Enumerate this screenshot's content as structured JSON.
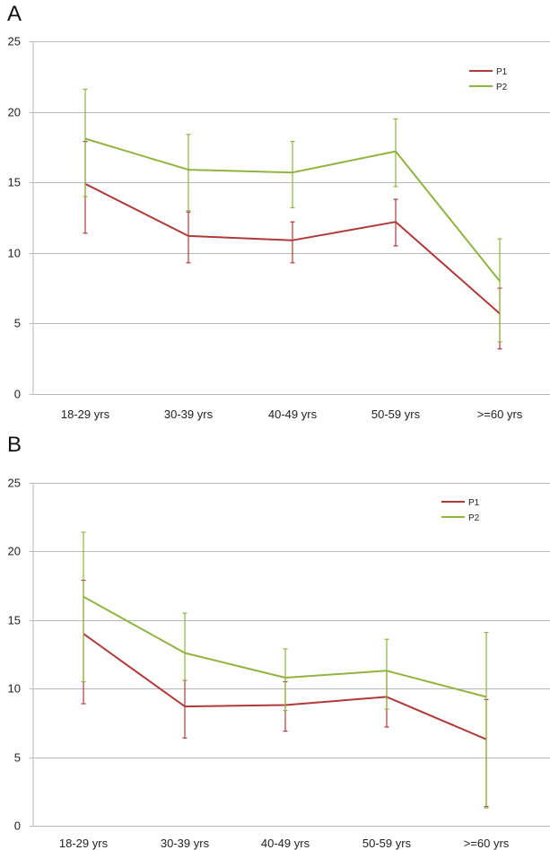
{
  "colors": {
    "P1": "#b03a3a",
    "P2": "#8fb440",
    "grid": "#b8b8b8"
  },
  "chart_data": [
    {
      "panel_label": "A",
      "type": "line",
      "title": "",
      "xlabel": "",
      "ylabel": "",
      "ylim": [
        0,
        25
      ],
      "yticks": [
        0,
        5,
        10,
        15,
        20,
        25
      ],
      "grid": true,
      "legend_position": "top-right",
      "categories": [
        "18-29 yrs",
        "30-39 yrs",
        "40-49 yrs",
        "50-59 yrs",
        ">=60 yrs"
      ],
      "series": [
        {
          "name": "P1",
          "values": [
            14.9,
            11.2,
            10.9,
            12.2,
            5.7
          ],
          "err_low": [
            11.4,
            9.3,
            9.3,
            10.5,
            3.2
          ],
          "err_high": [
            17.9,
            12.9,
            12.2,
            13.8,
            7.5
          ]
        },
        {
          "name": "P2",
          "values": [
            18.1,
            15.9,
            15.7,
            17.2,
            8.0
          ],
          "err_low": [
            14.0,
            13.0,
            13.2,
            14.7,
            3.7
          ],
          "err_high": [
            21.6,
            18.4,
            17.9,
            19.5,
            11.0
          ]
        }
      ]
    },
    {
      "panel_label": "B",
      "type": "line",
      "title": "",
      "xlabel": "",
      "ylabel": "",
      "ylim": [
        0,
        25
      ],
      "yticks": [
        0,
        5,
        10,
        15,
        20,
        25
      ],
      "grid": true,
      "legend_position": "top-right",
      "categories": [
        "18-29 yrs",
        "30-39 yrs",
        "40-49 yrs",
        "50-59 yrs",
        ">=60 yrs"
      ],
      "series": [
        {
          "name": "P1",
          "values": [
            14.0,
            8.7,
            8.8,
            9.4,
            6.3
          ],
          "err_low": [
            8.9,
            6.4,
            6.9,
            7.2,
            1.4
          ],
          "err_high": [
            17.9,
            10.6,
            10.5,
            11.3,
            9.2
          ]
        },
        {
          "name": "P2",
          "values": [
            16.7,
            12.6,
            10.8,
            11.3,
            9.4
          ],
          "err_low": [
            10.5,
            10.6,
            8.4,
            8.5,
            1.3
          ],
          "err_high": [
            21.4,
            15.5,
            12.9,
            13.6,
            14.1
          ]
        }
      ]
    }
  ]
}
